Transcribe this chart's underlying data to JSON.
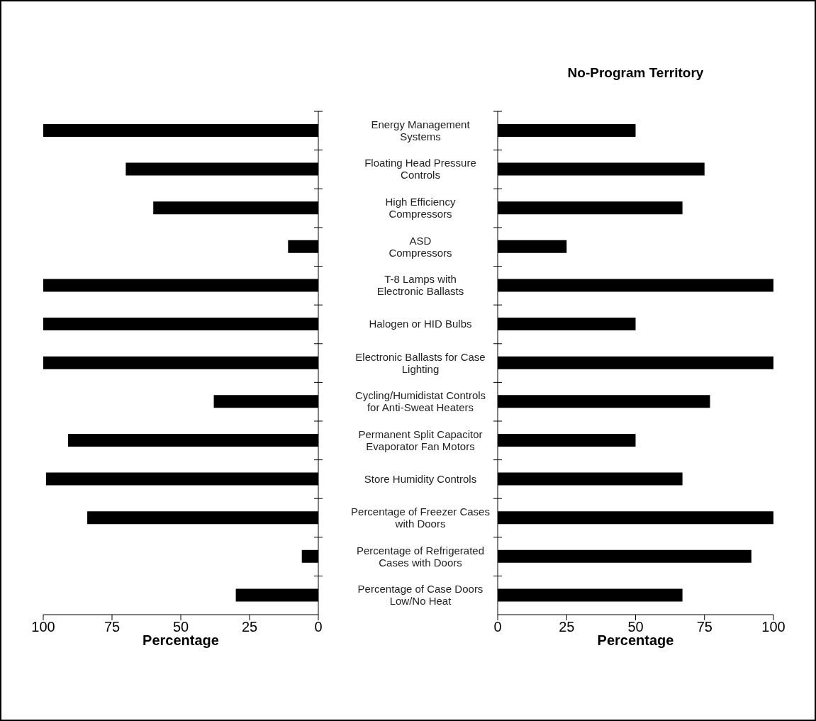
{
  "chart_data": [
    {
      "type": "bar",
      "orientation": "horizontal",
      "categories": [
        "Energy Management\nSystems",
        "Floating Head Pressure\nControls",
        "High Efficiency\nCompressors",
        "ASD\nCompressors",
        "T-8 Lamps with\nElectronic Ballasts",
        "Halogen or HID Bulbs",
        "Electronic Ballasts for Case\nLighting",
        "Cycling/Humidistat Controls\nfor Anti-Sweat Heaters",
        "Permanent Split Capacitor\nEvaporator Fan Motors",
        "Store Humidity Controls",
        "Percentage of Freezer Cases\nwith Doors",
        "Percentage of Refrigerated\nCases with Doors",
        "Percentage of Case Doors\nLow/No Heat"
      ],
      "series": [
        {
          "color": "#000000",
          "values": [
            100,
            70,
            60,
            11,
            100,
            100,
            100,
            38,
            91,
            99,
            84,
            6,
            30
          ]
        }
      ],
      "xlabel": "Percentage",
      "xlim": [
        100,
        0
      ],
      "xticks": [
        100,
        75,
        50,
        25,
        0
      ],
      "grid": false,
      "legend": false
    },
    {
      "type": "bar",
      "orientation": "horizontal",
      "title": "No-Program Territory",
      "series": [
        {
          "color": "#000000",
          "values": [
            50,
            75,
            67,
            25,
            100,
            50,
            100,
            77,
            50,
            67,
            100,
            92,
            67
          ]
        }
      ],
      "xlabel": "Percentage",
      "xlim": [
        0,
        100
      ],
      "xticks": [
        0,
        25,
        50,
        75,
        100
      ],
      "tick_labels": "x",
      "grid": false,
      "legend": false
    }
  ]
}
